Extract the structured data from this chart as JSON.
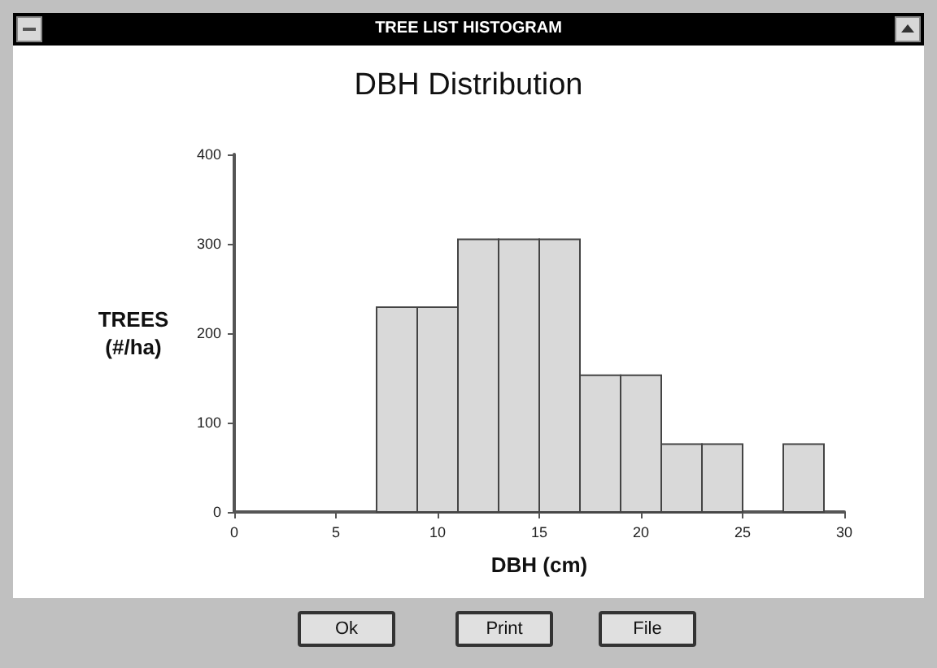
{
  "chart_data": {
    "type": "histogram",
    "title": "DBH Distribution",
    "xlabel": "DBH (cm)",
    "ylabel": "TREES\n(#/ha)",
    "annotations": [
      "TREE LIST HISTOGRAM",
      "Ok",
      "Print",
      "File"
    ],
    "bins": [
      7,
      9,
      11,
      13,
      15,
      17,
      19,
      21,
      23,
      25,
      27,
      29
    ],
    "values": [
      229,
      229,
      305,
      305,
      305,
      153,
      153,
      76,
      76,
      0,
      76
    ],
    "color": "#d9d9d9",
    "xlim": [
      0,
      30
    ],
    "xticks": [
      0,
      5,
      10,
      15,
      20,
      25,
      30
    ],
    "ylim": [
      0,
      400
    ],
    "yticks": [
      0,
      100,
      200,
      300,
      400
    ],
    "grid": false
  }
}
